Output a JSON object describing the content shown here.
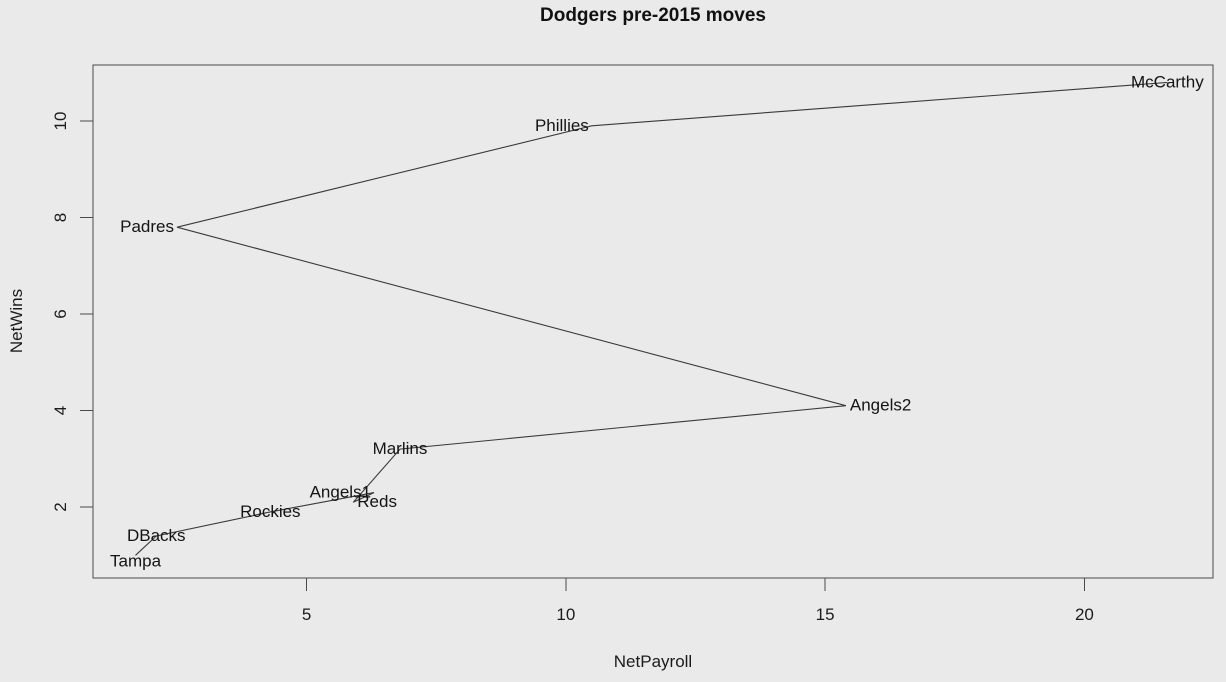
{
  "title": "Dodgers pre-2015 moves",
  "chart_data": {
    "type": "line",
    "title": "Dodgers pre-2015 moves",
    "xlabel": "NetPayroll",
    "ylabel": "NetWins",
    "xlim": [
      0.88,
      22.48
    ],
    "ylim": [
      0.53,
      11.16
    ],
    "x_ticks": [
      5,
      10,
      15,
      20
    ],
    "y_ticks": [
      2,
      4,
      6,
      8,
      10
    ],
    "grid": false,
    "legend": "none",
    "colors": {
      "background": "#eaeaea",
      "line": "#3a3a3a",
      "box": "#4a4a4a",
      "text": "#1b1b1b"
    },
    "points": [
      {
        "label": "Tampa",
        "x": 1.7,
        "y": 1.0,
        "label_pos": "center",
        "dy": 6
      },
      {
        "label": "DBacks",
        "x": 2.1,
        "y": 1.4,
        "label_pos": "center",
        "dy": 0
      },
      {
        "label": "Rockies",
        "x": 4.3,
        "y": 1.9,
        "label_pos": "center",
        "dy": 0
      },
      {
        "label": "Angels1",
        "x": 6.3,
        "y": 2.3,
        "label_pos": "left",
        "dy": 0
      },
      {
        "label": "Reds",
        "x": 5.9,
        "y": 2.1,
        "label_pos": "right",
        "dy": 0
      },
      {
        "label": "Marlins",
        "x": 6.8,
        "y": 3.2,
        "label_pos": "center",
        "dy": 0
      },
      {
        "label": "Angels2",
        "x": 15.4,
        "y": 4.1,
        "label_pos": "right",
        "dy": 0
      },
      {
        "label": "Padres",
        "x": 2.5,
        "y": 7.8,
        "label_pos": "left",
        "dy": 0
      },
      {
        "label": "Phillies",
        "x": 10.5,
        "y": 9.9,
        "label_pos": "left",
        "dy": 0
      },
      {
        "label": "McCarthy",
        "x": 21.6,
        "y": 10.8,
        "label_pos": "center",
        "dy": 0
      }
    ]
  }
}
